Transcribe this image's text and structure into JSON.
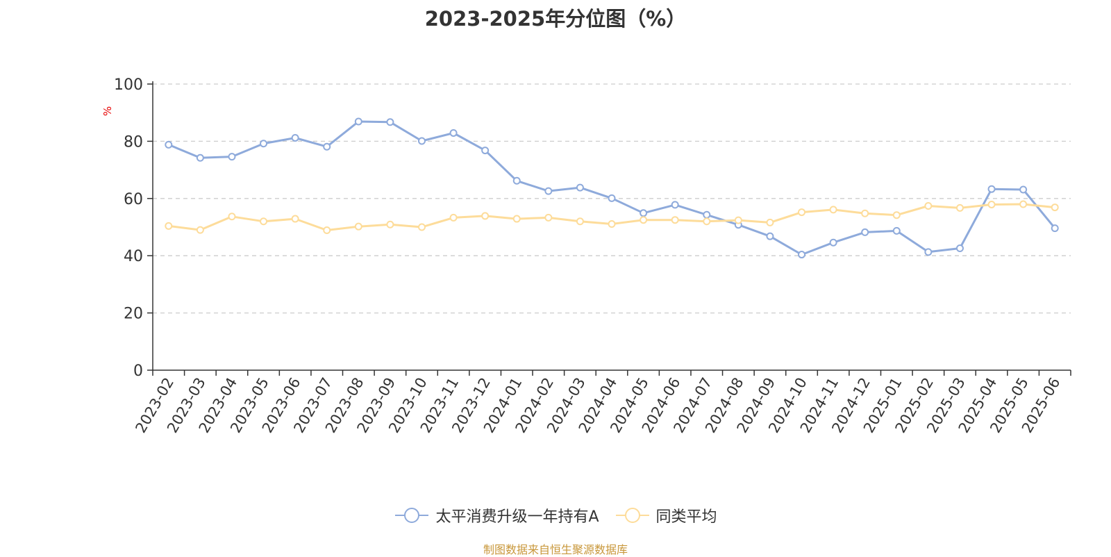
{
  "chart_data": {
    "type": "line",
    "title": "2023-2025年分位图（%）",
    "ylabel": "%",
    "xlabel": "",
    "ylim": [
      0,
      100
    ],
    "yticks": [
      0,
      20,
      40,
      60,
      80,
      100
    ],
    "grid": true,
    "legend_position": "bottom",
    "categories": [
      "2023-02",
      "2023-03",
      "2023-04",
      "2023-05",
      "2023-06",
      "2023-07",
      "2023-08",
      "2023-09",
      "2023-10",
      "2023-11",
      "2023-12",
      "2024-01",
      "2024-02",
      "2024-03",
      "2024-04",
      "2024-05",
      "2024-06",
      "2024-07",
      "2024-08",
      "2024-09",
      "2024-10",
      "2024-11",
      "2024-12",
      "2025-01",
      "2025-02",
      "2025-03",
      "2025-04",
      "2025-05",
      "2025-06"
    ],
    "series": [
      {
        "name": "太平消费升级一年持有A",
        "color": "#8eaadb",
        "values": [
          78.8,
          74.2,
          74.6,
          79.2,
          81.2,
          78.1,
          86.9,
          86.7,
          80.1,
          82.9,
          76.8,
          66.2,
          62.6,
          63.8,
          60.1,
          54.9,
          57.8,
          54.3,
          50.8,
          46.8,
          40.4,
          44.6,
          48.2,
          48.7,
          41.3,
          42.6,
          63.3,
          63.1,
          49.6
        ]
      },
      {
        "name": "同类平均",
        "color": "#fddc9a",
        "values": [
          50.4,
          49.0,
          53.7,
          52.0,
          52.9,
          48.9,
          50.2,
          50.9,
          50.0,
          53.3,
          53.9,
          52.9,
          53.3,
          52.0,
          51.1,
          52.5,
          52.5,
          52.0,
          52.4,
          51.6,
          55.2,
          56.1,
          54.8,
          54.2,
          57.4,
          56.7,
          57.9,
          58.0,
          56.9
        ]
      }
    ]
  },
  "source_text": "制图数据来自恒生聚源数据库"
}
